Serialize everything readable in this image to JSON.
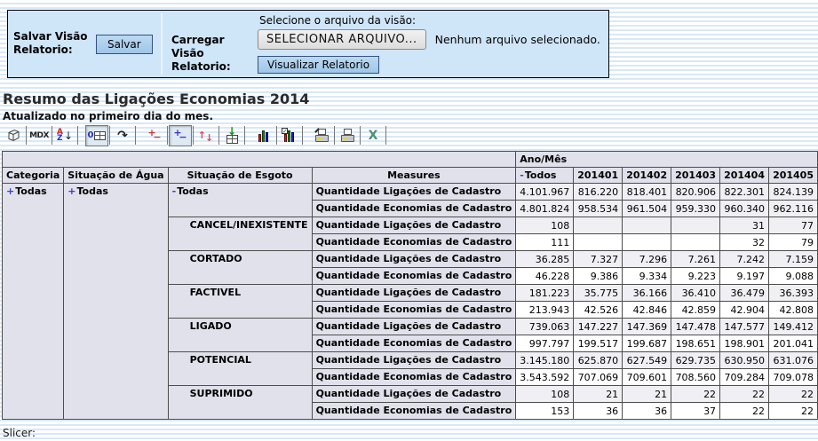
{
  "top_panel": {
    "save_label": "Salvar Visão Relatorio:",
    "save_button": "Salvar",
    "load_label": "Carregar Visão Relatorio:",
    "file_hint": "Selecione o arquivo da visão:",
    "file_button": "SELECIONAR ARQUIVO...",
    "file_status": "Nenhum arquivo selecionado.",
    "view_button": "Visualizar Relatorio"
  },
  "report": {
    "title": "Resumo das Ligações Economias 2014",
    "subtitle": "Atualizado no primeiro dia do mes.",
    "slicer_label": "Slicer:"
  },
  "toolbar": {
    "icons": [
      {
        "name": "cube-navigator-icon",
        "pressed": false,
        "group_end": false
      },
      {
        "name": "mdx-editor-icon",
        "pressed": false,
        "group_end": false
      },
      {
        "name": "sort-icon",
        "pressed": false,
        "group_end": true
      },
      {
        "name": "suppress-empty-icon",
        "pressed": true,
        "group_end": false
      },
      {
        "name": "swap-axes-icon",
        "pressed": false,
        "group_end": true
      },
      {
        "name": "drill-member-icon",
        "pressed": false,
        "group_end": false
      },
      {
        "name": "drill-position-icon",
        "pressed": true,
        "group_end": false
      },
      {
        "name": "drill-replace-icon",
        "pressed": false,
        "group_end": false
      },
      {
        "name": "drill-through-icon",
        "pressed": false,
        "group_end": true
      },
      {
        "name": "show-chart-icon",
        "pressed": false,
        "group_end": false
      },
      {
        "name": "chart-config-icon",
        "pressed": false,
        "group_end": true
      },
      {
        "name": "print-config-icon",
        "pressed": false,
        "group_end": false
      },
      {
        "name": "print-pdf-icon",
        "pressed": false,
        "group_end": false
      },
      {
        "name": "export-excel-icon",
        "pressed": false,
        "group_end": false
      }
    ]
  },
  "table": {
    "col_axis_label": "Ano/Mês",
    "row_headers": [
      "Categoria",
      "Situação de Água",
      "Situação de Esgoto",
      "Measures"
    ],
    "columns": [
      {
        "label": "Todos",
        "marker": "-"
      },
      {
        "label": "201401",
        "marker": ""
      },
      {
        "label": "201402",
        "marker": ""
      },
      {
        "label": "201403",
        "marker": ""
      },
      {
        "label": "201404",
        "marker": ""
      },
      {
        "label": "201405",
        "marker": ""
      }
    ],
    "categoria": {
      "label": "Todas",
      "marker": "+"
    },
    "agua": {
      "label": "Todas",
      "marker": "+"
    },
    "groups": [
      {
        "esgoto": "Todas",
        "marker": "-",
        "indent": false,
        "rows": [
          {
            "measure": "Quantidade Ligações de Cadastro",
            "shade": true,
            "values": [
              "4.101.967",
              "816.220",
              "818.401",
              "820.906",
              "822.301",
              "824.139"
            ]
          },
          {
            "measure": "Quantidade Economias de Cadastro",
            "shade": true,
            "values": [
              "4.801.824",
              "958.534",
              "961.504",
              "959.330",
              "960.340",
              "962.116"
            ]
          }
        ]
      },
      {
        "esgoto": "CANCEL/INEXISTENTE",
        "marker": "",
        "indent": true,
        "rows": [
          {
            "measure": "Quantidade Ligações de Cadastro",
            "shade": true,
            "values": [
              "108",
              "",
              "",
              "",
              "31",
              "77"
            ]
          },
          {
            "measure": "Quantidade Economias de Cadastro",
            "shade": false,
            "values": [
              "111",
              "",
              "",
              "",
              "32",
              "79"
            ]
          }
        ]
      },
      {
        "esgoto": "CORTADO",
        "marker": "",
        "indent": true,
        "rows": [
          {
            "measure": "Quantidade Ligações de Cadastro",
            "shade": true,
            "values": [
              "36.285",
              "7.327",
              "7.296",
              "7.261",
              "7.242",
              "7.159"
            ]
          },
          {
            "measure": "Quantidade Economias de Cadastro",
            "shade": false,
            "values": [
              "46.228",
              "9.386",
              "9.334",
              "9.223",
              "9.197",
              "9.088"
            ]
          }
        ]
      },
      {
        "esgoto": "FACTIVEL",
        "marker": "",
        "indent": true,
        "rows": [
          {
            "measure": "Quantidade Ligações de Cadastro",
            "shade": true,
            "values": [
              "181.223",
              "35.775",
              "36.166",
              "36.410",
              "36.479",
              "36.393"
            ]
          },
          {
            "measure": "Quantidade Economias de Cadastro",
            "shade": false,
            "values": [
              "213.943",
              "42.526",
              "42.846",
              "42.859",
              "42.904",
              "42.808"
            ]
          }
        ]
      },
      {
        "esgoto": "LIGADO",
        "marker": "",
        "indent": true,
        "rows": [
          {
            "measure": "Quantidade Ligações de Cadastro",
            "shade": true,
            "values": [
              "739.063",
              "147.227",
              "147.369",
              "147.478",
              "147.577",
              "149.412"
            ]
          },
          {
            "measure": "Quantidade Economias de Cadastro",
            "shade": false,
            "values": [
              "997.797",
              "199.517",
              "199.687",
              "198.651",
              "198.901",
              "201.041"
            ]
          }
        ]
      },
      {
        "esgoto": "POTENCIAL",
        "marker": "",
        "indent": true,
        "rows": [
          {
            "measure": "Quantidade Ligações de Cadastro",
            "shade": true,
            "values": [
              "3.145.180",
              "625.870",
              "627.549",
              "629.735",
              "630.950",
              "631.076"
            ]
          },
          {
            "measure": "Quantidade Economias de Cadastro",
            "shade": false,
            "values": [
              "3.543.592",
              "707.069",
              "709.601",
              "708.560",
              "709.284",
              "709.078"
            ]
          }
        ]
      },
      {
        "esgoto": "SUPRIMIDO",
        "marker": "",
        "indent": true,
        "rows": [
          {
            "measure": "Quantidade Ligações de Cadastro",
            "shade": true,
            "values": [
              "108",
              "21",
              "21",
              "22",
              "22",
              "22"
            ]
          },
          {
            "measure": "Quantidade Economias de Cadastro",
            "shade": false,
            "values": [
              "153",
              "36",
              "36",
              "37",
              "22",
              "22"
            ]
          }
        ]
      }
    ]
  },
  "colors": {
    "panel_bg": "#cfe5f8",
    "stripe_blue": "#d9e8f6",
    "header_bg": "#e1e1ec",
    "shade_row_bg": "#efeff4",
    "marker_blue": "#3d3dcf",
    "button_blue": "#aecfec"
  }
}
